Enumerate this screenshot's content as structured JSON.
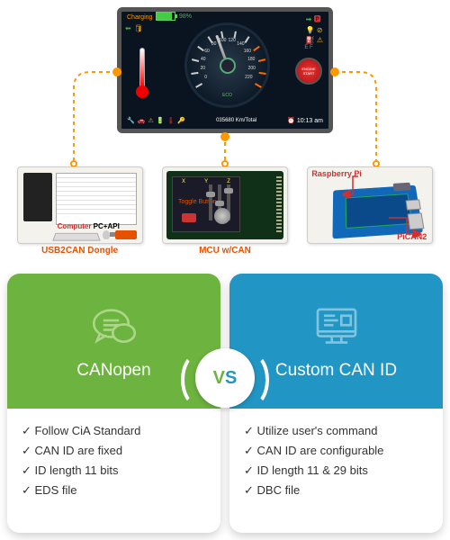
{
  "top": {
    "dashboard": {
      "charging_label": "Charging",
      "battery_pct": "98%",
      "battery_fill_color": "#4caf50",
      "gauge": {
        "min": 0,
        "max": 220,
        "ticks": [
          0,
          20,
          40,
          60,
          80,
          100,
          120,
          140,
          160,
          180,
          200,
          220
        ],
        "orange_from": 160,
        "eco_label": "ECO"
      },
      "odometer": "035680 Km/Total",
      "clock_icon": "⏰",
      "clock": "10:13 am",
      "warning_icons": [
        "🔧",
        "🚗",
        "⚠",
        "🔋",
        "🌡",
        "🔑"
      ],
      "indicator_icons_left": [
        "⬅",
        "🛢",
        "💡"
      ],
      "indicator_icons_right_col": [
        "➡ 🅿",
        "💡 ⊘",
        "⛽ ⚠"
      ],
      "engine_btn": "ENGINE START",
      "fuel_labels": "E  F",
      "background": "#0a1420"
    },
    "connector_color": "#ff9800",
    "devices": [
      {
        "id": "pc",
        "box_bg": "#f4f2ed",
        "label_top": "Computer",
        "label_top_right": "PC+API",
        "label_bottom": "USB2CAN Dongle",
        "label_color_top": "#d32f2f",
        "label_color_bottom": "#e65100",
        "dongle_color": "#e65100"
      },
      {
        "id": "mcu",
        "box_bg": "#f4f2ed",
        "label_bottom": "MCU w/CAN",
        "label_color_bottom": "#e65100",
        "toggle_text": "Toggle Button",
        "toggle_color": "#e65100",
        "xyz": [
          "X",
          "Y",
          "Z"
        ],
        "board_color": "#103018",
        "screen_color": "#1a1a28"
      },
      {
        "id": "rpi",
        "box_bg": "#f4f2ed",
        "label_top": "Raspberry Pi",
        "label_bottom_right": "PiCAN2",
        "label_color": "#d32f2f",
        "board_color": "#1168b8",
        "hat_color": "#0a4a8a"
      }
    ]
  },
  "compare": {
    "vs": "VS",
    "left": {
      "title": "CANopen",
      "header_bg": "#6db33f",
      "icon": "chat-icon",
      "icon_color": "#c8e6a8",
      "vs_color": "#6db33f",
      "items": [
        "Follow CiA Standard",
        "CAN ID are fixed",
        "ID length 11 bits",
        "EDS file"
      ]
    },
    "right": {
      "title": "Custom CAN ID",
      "header_bg": "#2196c4",
      "icon": "monitor-icon",
      "icon_color": "#a8d8ec",
      "vs_color": "#2196c4",
      "items": [
        "Utilize user's command",
        "CAN ID are configurable",
        "ID length 11 & 29 bits",
        "DBC file"
      ]
    }
  }
}
